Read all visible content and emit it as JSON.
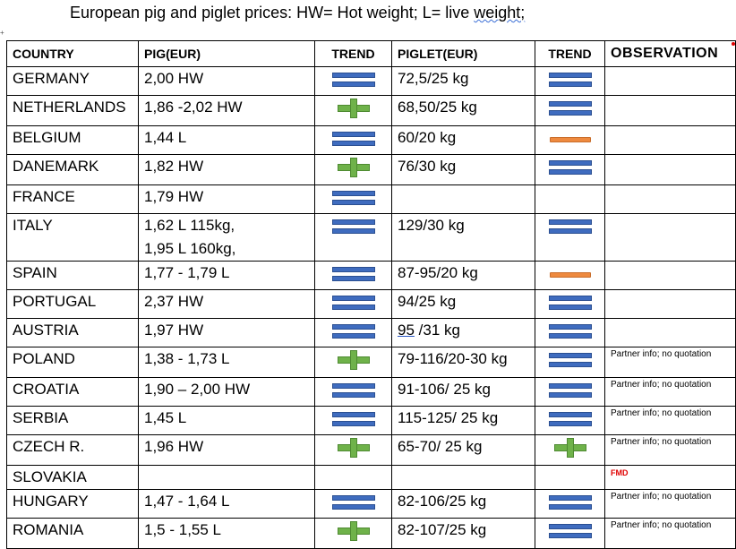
{
  "title": {
    "main": "European pig and piglet prices: HW= Hot weight; L= live ",
    "underlined": "weight;"
  },
  "anchor_glyph": "⁂",
  "headers": {
    "country": "COUNTRY",
    "pig": "PIG(EUR)",
    "trend_pig": "TREND",
    "piglet": "PIGLET(EUR)",
    "trend_piglet": "TREND",
    "observation": "OBSERVATION"
  },
  "rows": [
    {
      "country": "GERMANY",
      "pig": "2,00 HW",
      "pig_trend": "equal",
      "piglet": "72,5/25 kg",
      "piglet_trend": "equal",
      "obs": ""
    },
    {
      "country": "NETHERLANDS",
      "pig": "1,86 -2,02 HW",
      "pig_trend": "up",
      "piglet": "68,50/25 kg",
      "piglet_trend": "equal",
      "obs": ""
    },
    {
      "country": "BELGIUM",
      "pig": "1,44 L",
      "pig_trend": "equal",
      "piglet": "60/20 kg",
      "piglet_trend": "down",
      "obs": ""
    },
    {
      "country": "DANEMARK",
      "pig": "1,82 HW",
      "pig_trend": "up",
      "piglet": "76/30 kg",
      "piglet_trend": "equal",
      "obs": ""
    },
    {
      "country": "FRANCE",
      "pig": "1,79 HW",
      "pig_trend": "equal",
      "piglet": "",
      "piglet_trend": "",
      "obs": ""
    },
    {
      "country": "ITALY",
      "pig": "1,62 L 115kg,",
      "pig2": "1,95 L 160kg,",
      "pig_trend": "equal",
      "piglet": "129/30 kg",
      "piglet_trend": "equal",
      "obs": ""
    },
    {
      "country": "SPAIN",
      "pig": "1,77 - 1,79 L",
      "pig_trend": "equal",
      "piglet": "87-95/20 kg",
      "piglet_trend": "down",
      "obs": ""
    },
    {
      "country": "PORTUGAL",
      "pig": "2,37 HW",
      "pig_trend": "equal",
      "piglet": "94/25 kg",
      "piglet_trend": "equal",
      "obs": ""
    },
    {
      "country": "AUSTRIA",
      "pig": "1,97 HW",
      "pig_trend": "equal",
      "piglet_a": "95",
      "piglet_b": "/31 kg",
      "piglet_trend": "equal",
      "obs": ""
    },
    {
      "country": "POLAND",
      "pig": "1,38 - 1,73 L",
      "pig_trend": "up",
      "piglet": "79-116/20-30 kg",
      "piglet_trend": "equal",
      "obs": "Partner info; no quotation"
    },
    {
      "country": "CROATIA",
      "pig": "1,90 – 2,00 HW",
      "pig_trend": "equal",
      "piglet": "91-106/ 25 kg",
      "piglet_trend": "equal",
      "obs": "Partner info; no quotation"
    },
    {
      "country": "SERBIA",
      "pig": "1,45 L",
      "pig_trend": "equal",
      "piglet": "115-125/ 25 kg",
      "piglet_trend": "equal",
      "obs": "Partner info; no quotation"
    },
    {
      "country": "CZECH R.",
      "pig": "1,96 HW",
      "pig_trend": "up",
      "piglet": "65-70/ 25 kg",
      "piglet_trend": "up",
      "obs": "Partner info; no quotation"
    },
    {
      "country": "SLOVAKIA",
      "pig": "",
      "pig_trend": "",
      "piglet": "",
      "piglet_trend": "",
      "obs": "FMD"
    },
    {
      "country": "HUNGARY",
      "pig": "1,47 - 1,64 L",
      "pig_trend": "equal",
      "piglet": "82-106/25 kg",
      "piglet_trend": "equal",
      "obs": "Partner info; no quotation"
    },
    {
      "country": "ROMANIA",
      "pig": "1,5 - 1,55 L",
      "pig_trend": "up",
      "piglet": "82-107/25 kg",
      "piglet_trend": "equal",
      "obs": "Partner info; no quotation"
    }
  ],
  "colors": {
    "equal_icon": "#3f6cbf",
    "up_icon": "#6fb24a",
    "down_icon": "#ee8a3f",
    "fmd_text": "#e00000"
  }
}
